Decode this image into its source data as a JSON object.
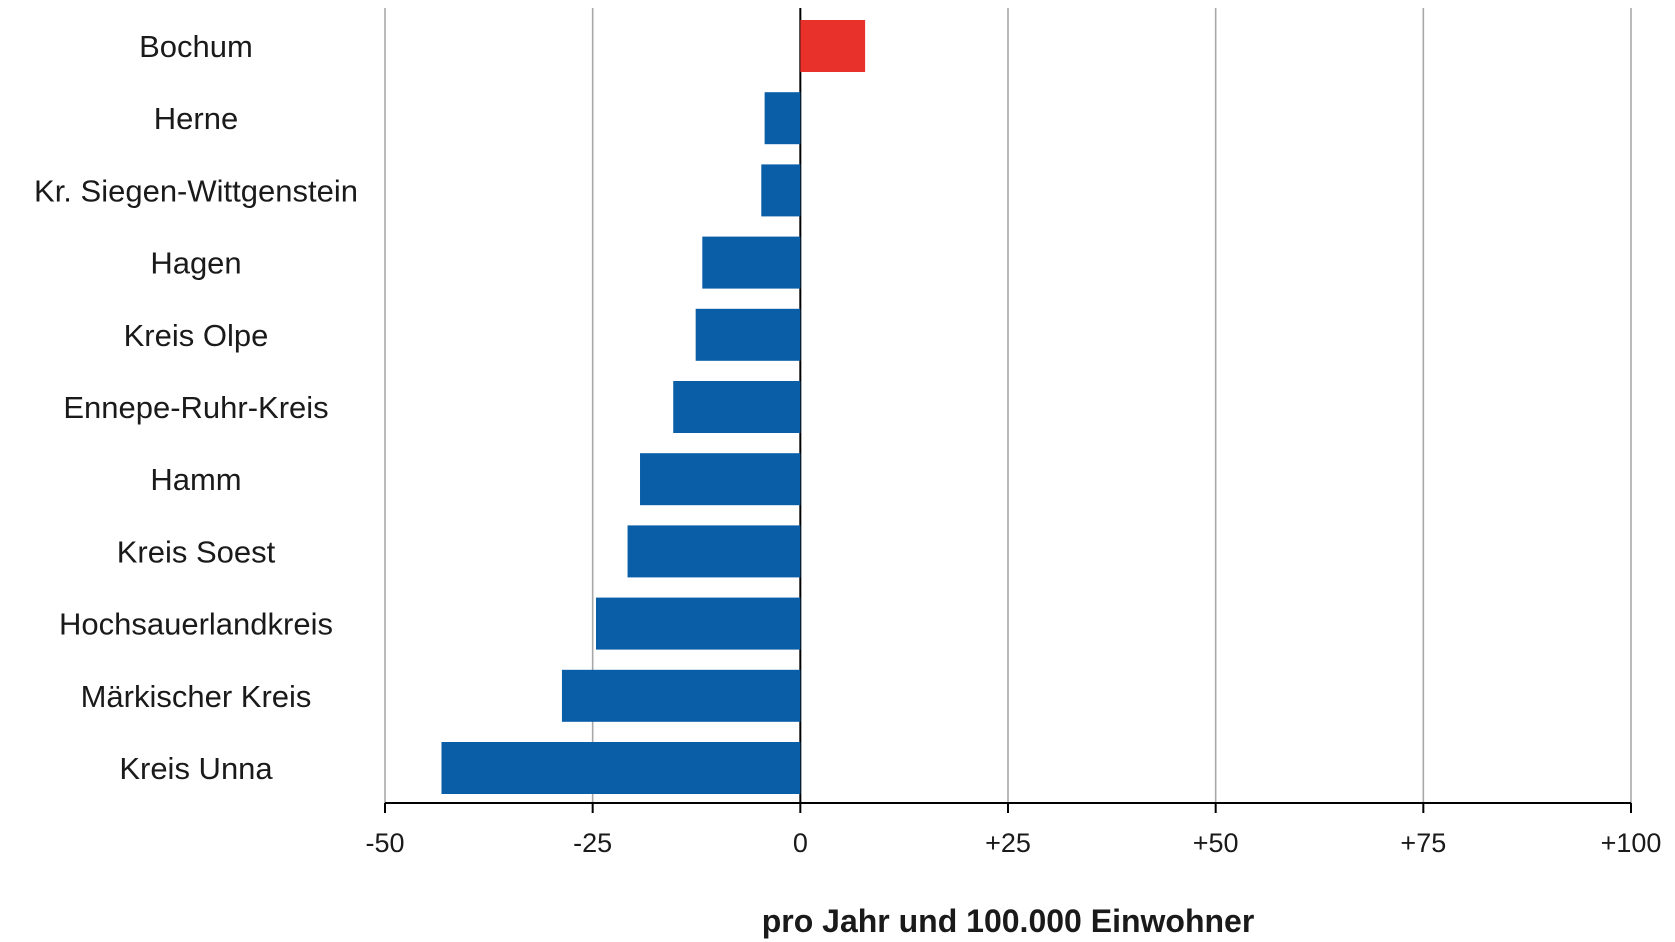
{
  "chart_data": {
    "type": "bar",
    "orientation": "horizontal",
    "categories": [
      "Bochum",
      "Herne",
      "Kr. Siegen-Wittgenstein",
      "Hagen",
      "Kreis Olpe",
      "Ennepe-Ruhr-Kreis",
      "Hamm",
      "Kreis Soest",
      "Hochsauerlandkreis",
      "Märkischer Kreis",
      "Kreis Unna"
    ],
    "values": [
      7.8,
      -4.3,
      -4.7,
      -11.8,
      -12.6,
      -15.3,
      -19.3,
      -20.8,
      -24.6,
      -28.7,
      -43.2
    ],
    "bar_colors": [
      "#e8312a",
      "#0a5ea8",
      "#0a5ea8",
      "#0a5ea8",
      "#0a5ea8",
      "#0a5ea8",
      "#0a5ea8",
      "#0a5ea8",
      "#0a5ea8",
      "#0a5ea8",
      "#0a5ea8"
    ],
    "x_ticks": [
      -50,
      -25,
      0,
      25,
      50,
      75,
      100
    ],
    "x_tick_labels": [
      "-50",
      "-25",
      "0",
      "+25",
      "+50",
      "+75",
      "+100"
    ],
    "xlim": [
      -50,
      100
    ],
    "xlabel": "pro Jahr und 100.000 Einwohner",
    "title": "",
    "grid": "vertical",
    "legend": "none"
  }
}
